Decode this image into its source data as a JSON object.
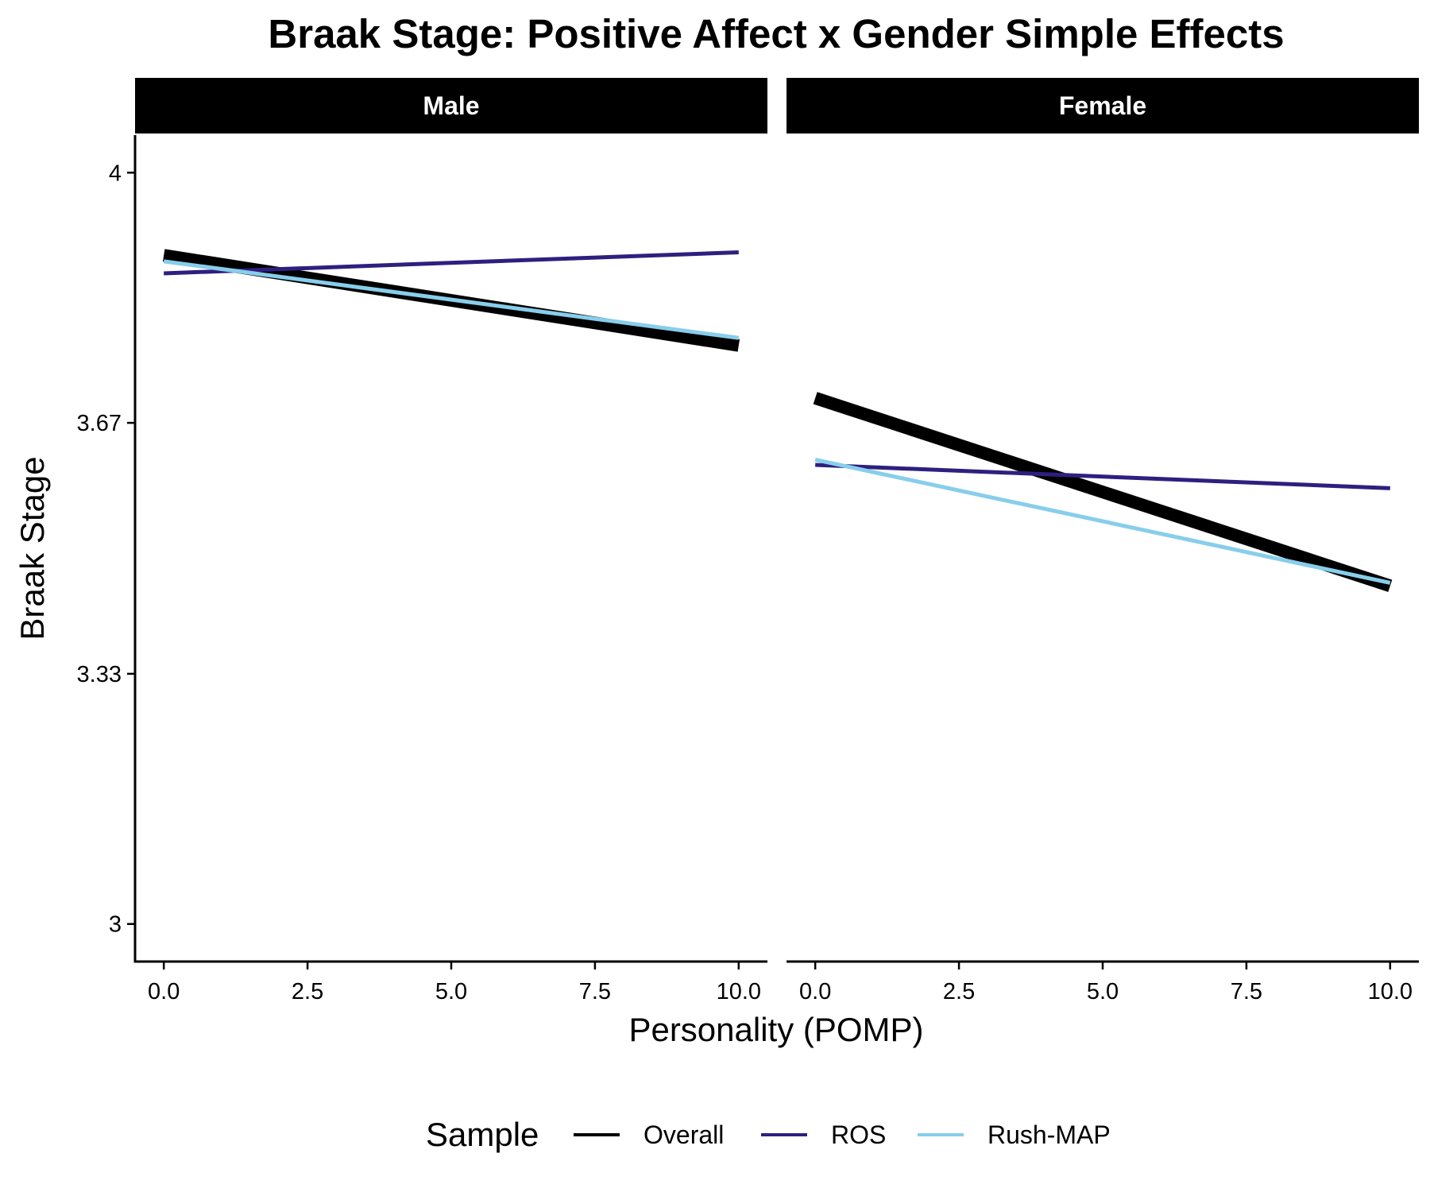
{
  "chart_data": {
    "type": "line",
    "title": "Braak Stage: Positive Affect x Gender Simple Effects",
    "xlabel": "Personality (POMP)",
    "ylabel": "Braak Stage",
    "xlim": [
      -0.5,
      10.5
    ],
    "ylim": [
      2.95,
      4.05
    ],
    "x_ticks": [
      0.0,
      2.5,
      5.0,
      7.5,
      10.0
    ],
    "x_tick_labels": [
      "0.0",
      "2.5",
      "5.0",
      "7.5",
      "10.0"
    ],
    "y_ticks": [
      3.0,
      3.333,
      3.667,
      4.0
    ],
    "y_tick_labels": [
      "3",
      "3.33",
      "3.67",
      "4"
    ],
    "grid": false,
    "legend": {
      "title": "Sample",
      "position": "bottom",
      "entries": [
        "Overall",
        "ROS",
        "Rush-MAP"
      ]
    },
    "series_styles": [
      {
        "name": "Overall",
        "color": "#000000",
        "weight": "thick"
      },
      {
        "name": "ROS",
        "color": "#2e1f7f",
        "weight": "thin"
      },
      {
        "name": "Rush-MAP",
        "color": "#87ceeb",
        "weight": "thin"
      }
    ],
    "panels": [
      {
        "label": "Male",
        "x": [
          0,
          10
        ],
        "series": [
          {
            "name": "Overall",
            "values": [
              3.89,
              3.77
            ]
          },
          {
            "name": "ROS",
            "values": [
              3.866,
              3.894
            ]
          },
          {
            "name": "Rush-MAP",
            "values": [
              3.882,
              3.78
            ]
          }
        ]
      },
      {
        "label": "Female",
        "x": [
          0,
          10
        ],
        "series": [
          {
            "name": "Overall",
            "values": [
              3.7,
              3.45
            ]
          },
          {
            "name": "ROS",
            "values": [
              3.611,
              3.58
            ]
          },
          {
            "name": "Rush-MAP",
            "values": [
              3.618,
              3.454
            ]
          }
        ]
      }
    ]
  }
}
